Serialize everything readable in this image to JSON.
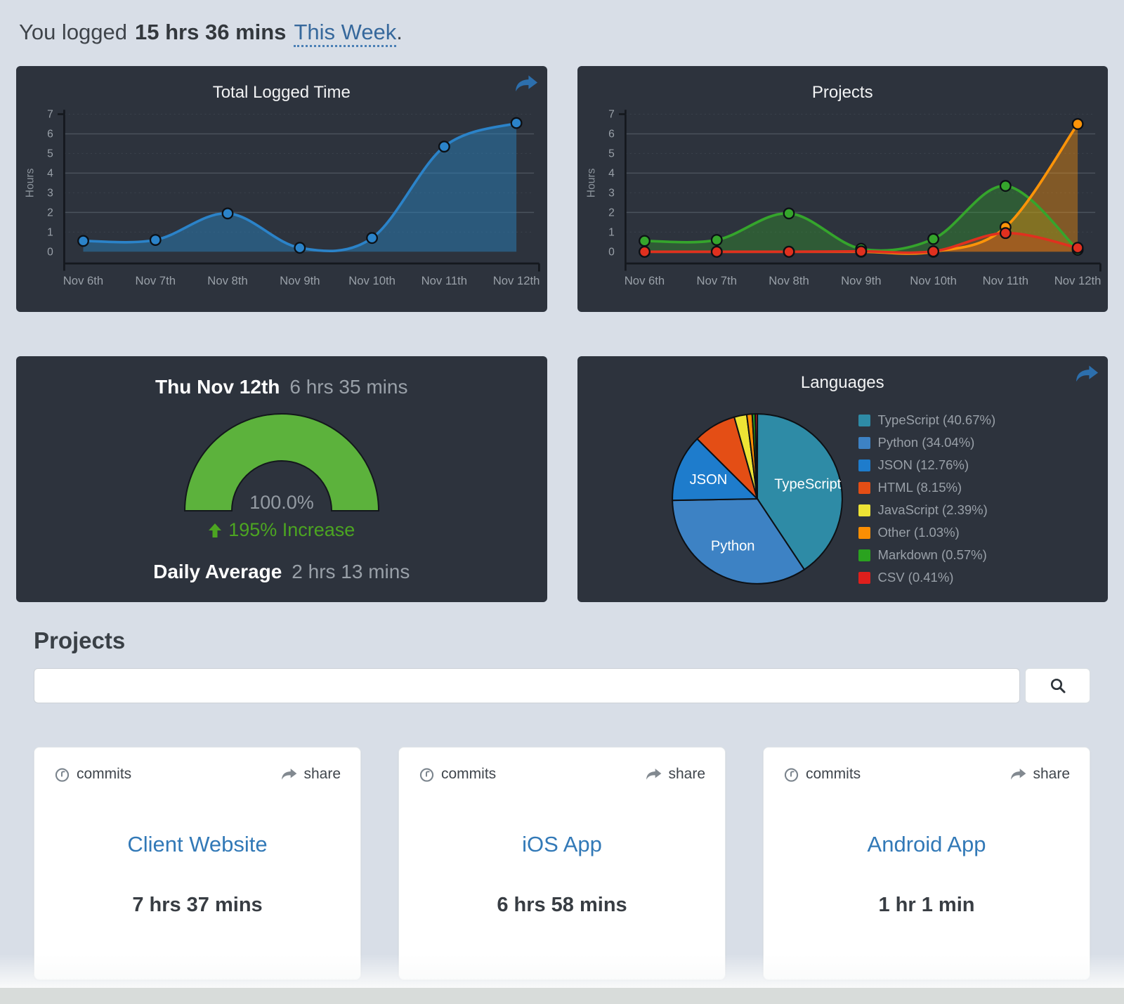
{
  "header": {
    "prefix": "You logged",
    "total_time": "15 hrs 36 mins",
    "range_link": "This Week",
    "suffix": "."
  },
  "gauge_panel": {
    "date": "Thu Nov 12th",
    "time_logged": "6 hrs 35 mins",
    "increase": "195% Increase",
    "daily_average_label": "Daily Average",
    "daily_average_value": "2 hrs 13 mins"
  },
  "projects_section": {
    "heading": "Projects",
    "search_placeholder": ""
  },
  "card_labels": {
    "commits": "commits",
    "share": "share"
  },
  "cards": [
    {
      "name": "Client Website",
      "time": "7 hrs 37 mins"
    },
    {
      "name": "iOS App",
      "time": "6 hrs 58 mins"
    },
    {
      "name": "Android App",
      "time": "1 hr 1 min"
    }
  ],
  "icons": {
    "panel_share": "share-arrow-icon",
    "card_commits": "commit-icon",
    "card_share": "share-arrow-icon",
    "search": "magnifier-icon",
    "increase": "up-arrow-icon"
  },
  "colors": {
    "page_bg": "#d8dee7",
    "panel_bg": "#2d333d",
    "link_blue": "#3279b7",
    "blue_line": "#2b83c9",
    "green_line": "#35a52c",
    "orange_line": "#ff9408",
    "red_line": "#e0301f",
    "gauge_green": "#5cb23c",
    "increase_green": "#4ca521"
  },
  "chart_data": [
    {
      "id": "chart-total-logged",
      "type": "area",
      "title": "Total Logged Time",
      "xlabel": "",
      "ylabel": "Hours",
      "ylim": [
        0,
        7
      ],
      "yticks": [
        0,
        1,
        2,
        3,
        4,
        5,
        6,
        7
      ],
      "grid": true,
      "legend_position": "none",
      "categories": [
        "Nov 6th",
        "Nov 7th",
        "Nov 8th",
        "Nov 9th",
        "Nov 10th",
        "Nov 11th",
        "Nov 12th"
      ],
      "series": [
        {
          "name": "hours-logged",
          "color": "#2b83c9",
          "fill": "rgba(41,128,185,0.5)",
          "values": [
            0.55,
            0.6,
            1.95,
            0.2,
            0.7,
            5.35,
            6.55
          ]
        }
      ]
    },
    {
      "id": "chart-projects",
      "type": "area",
      "title": "Projects",
      "xlabel": "",
      "ylabel": "Hours",
      "ylim": [
        0,
        7
      ],
      "yticks": [
        0,
        1,
        2,
        3,
        4,
        5,
        6,
        7
      ],
      "grid": true,
      "legend_position": "none",
      "categories": [
        "Nov 6th",
        "Nov 7th",
        "Nov 8th",
        "Nov 9th",
        "Nov 10th",
        "Nov 11th",
        "Nov 12th"
      ],
      "series": [
        {
          "name": "green-project",
          "color": "#35a52c",
          "fill": "rgba(53,165,44,0.35)",
          "values": [
            0.55,
            0.6,
            1.95,
            0.15,
            0.65,
            3.35,
            0.1
          ]
        },
        {
          "name": "orange-project",
          "color": "#ff9408",
          "fill": "rgba(255,148,8,0.4)",
          "values": [
            0,
            0,
            0,
            0,
            0,
            1.25,
            6.5
          ]
        },
        {
          "name": "red-project",
          "color": "#e0301f",
          "fill": "rgba(224,48,31,0.3)",
          "values": [
            0,
            0,
            0,
            0.02,
            0.02,
            0.95,
            0.2
          ]
        }
      ]
    },
    {
      "id": "gauge-chart",
      "type": "gauge",
      "value_pct": 100.0,
      "center_label": "100.0%",
      "color": "#5cb23c"
    },
    {
      "id": "pie-chart",
      "type": "pie",
      "title": "Languages",
      "legend_position": "right",
      "slices": [
        {
          "label": "TypeScript",
          "pct": "40.67",
          "color": "#2e8ba6"
        },
        {
          "label": "Python",
          "pct": "34.04",
          "color": "#3d82c4"
        },
        {
          "label": "JSON",
          "pct": "12.76",
          "color": "#1e7ccc"
        },
        {
          "label": "HTML",
          "pct": "8.15",
          "color": "#e44e15"
        },
        {
          "label": "JavaScript",
          "pct": "2.39",
          "color": "#ede335"
        },
        {
          "label": "Other",
          "pct": "1.03",
          "color": "#fb8e03"
        },
        {
          "label": "Markdown",
          "pct": "0.57",
          "color": "#2aa21f"
        },
        {
          "label": "CSV",
          "pct": "0.41",
          "color": "#df1f1c"
        }
      ]
    }
  ]
}
